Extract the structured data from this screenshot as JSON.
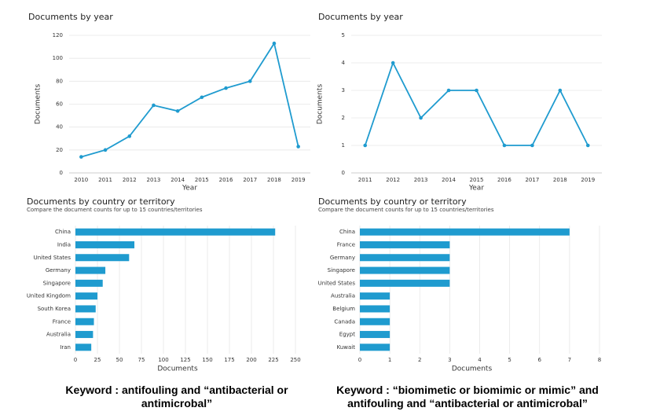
{
  "chart_data": [
    {
      "type": "line",
      "title": "Documents by year",
      "x_label": "Year",
      "y_label": "Documents",
      "categories": [
        "2010",
        "2011",
        "2012",
        "2013",
        "2014",
        "2015",
        "2016",
        "2017",
        "2018",
        "2019"
      ],
      "values": [
        14,
        20,
        32,
        59,
        54,
        66,
        74,
        80,
        113,
        23
      ],
      "color": "#1f9bcf",
      "ylim": [
        0,
        120
      ],
      "yticks": [
        0,
        20,
        40,
        60,
        80,
        100,
        120
      ],
      "grid": true
    },
    {
      "type": "line",
      "title": "Documents by year",
      "x_label": "Year",
      "y_label": "Documents",
      "categories": [
        "2011",
        "2012",
        "2013",
        "2014",
        "2015",
        "2016",
        "2017",
        "2018",
        "2019"
      ],
      "values": [
        1,
        4,
        2,
        3,
        3,
        1,
        1,
        3,
        1
      ],
      "color": "#1f9bcf",
      "ylim": [
        0,
        5
      ],
      "yticks": [
        0,
        1,
        2,
        3,
        4,
        5
      ],
      "grid": true
    },
    {
      "type": "bar",
      "horizontal": true,
      "title": "Documents by country or territory",
      "subtitle": "Compare the document counts for up to 15 countries/territories",
      "x_label": "Documents",
      "categories": [
        "China",
        "India",
        "United States",
        "Germany",
        "Singapore",
        "United Kingdom",
        "South Korea",
        "France",
        "Australia",
        "Iran"
      ],
      "values": [
        227,
        67,
        61,
        34,
        31,
        25,
        23,
        21,
        20,
        18
      ],
      "color": "#1f9bcf",
      "xlim": [
        0,
        250
      ],
      "xticks": [
        0,
        25,
        50,
        75,
        100,
        125,
        150,
        175,
        200,
        225,
        250
      ],
      "grid": true
    },
    {
      "type": "bar",
      "horizontal": true,
      "title": "Documents by country or territory",
      "subtitle": "Compare the document counts for up to 15 countries/territories",
      "x_label": "Documents",
      "categories": [
        "China",
        "France",
        "Germany",
        "Singapore",
        "United States",
        "Australia",
        "Belgium",
        "Canada",
        "Egypt",
        "Kuwait"
      ],
      "values": [
        7,
        3,
        3,
        3,
        3,
        1,
        1,
        1,
        1,
        1
      ],
      "color": "#1f9bcf",
      "xlim": [
        0,
        8
      ],
      "xticks": [
        0,
        1,
        2,
        3,
        4,
        5,
        6,
        7,
        8
      ],
      "grid": true
    }
  ],
  "captions": [
    "Keyword : antifouling and “antibacterial or antimicrobal”",
    "Keyword : “biomimetic or biomimic or mimic”  and antifouling and “antibacterial or antimicrobal”"
  ]
}
